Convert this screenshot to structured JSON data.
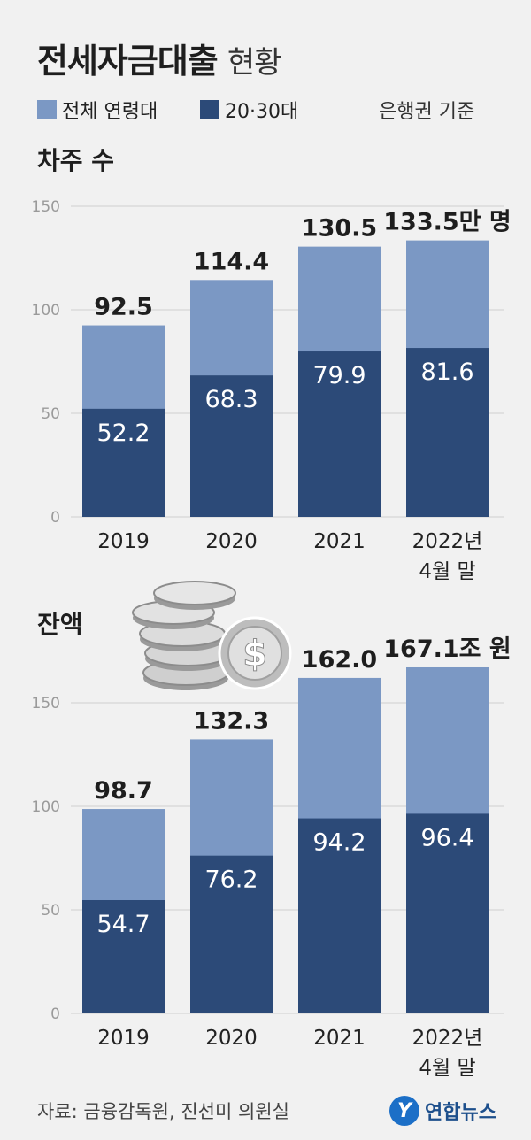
{
  "header": {
    "title_bold": "전세자금대출",
    "title_normal": "현황",
    "legend_all": "전체 연령대",
    "legend_young": "20·30대",
    "basis": "은행권 기준"
  },
  "colors": {
    "all_ages": "#7b98c4",
    "age_20_30": "#2c4a78",
    "grid": "#cfcfcf",
    "axis_text": "#9a9a9a"
  },
  "icons": [
    "coin-stack-icon",
    "dollar-coin-icon"
  ],
  "chart_data": [
    {
      "type": "bar",
      "title": "차주 수",
      "categories": [
        [
          "2019"
        ],
        [
          "2020"
        ],
        [
          "2021"
        ],
        [
          "2022년",
          "4월 말"
        ]
      ],
      "ylim": [
        0,
        150
      ],
      "yticks": [
        0,
        50,
        100,
        150
      ],
      "grid": true,
      "series": [
        {
          "name": "전체 연령대",
          "values": [
            92.5,
            114.4,
            130.5,
            133.5
          ]
        },
        {
          "name": "20·30대",
          "values": [
            52.2,
            68.3,
            79.9,
            81.6
          ]
        }
      ],
      "total_labels": [
        "92.5",
        "114.4",
        "130.5",
        "133.5만 명"
      ],
      "inner_labels": [
        "52.2",
        "68.3",
        "79.9",
        "81.6"
      ]
    },
    {
      "type": "bar",
      "title": "잔액",
      "categories": [
        [
          "2019"
        ],
        [
          "2020"
        ],
        [
          "2021"
        ],
        [
          "2022년",
          "4월 말"
        ]
      ],
      "ylim": [
        0,
        150
      ],
      "yticks": [
        0,
        50,
        100,
        150
      ],
      "grid": true,
      "series": [
        {
          "name": "전체 연령대",
          "values": [
            98.7,
            132.3,
            162.0,
            167.1
          ]
        },
        {
          "name": "20·30대",
          "values": [
            54.7,
            76.2,
            94.2,
            96.4
          ]
        }
      ],
      "total_labels": [
        "98.7",
        "132.3",
        "162.0",
        "167.1조 원"
      ],
      "inner_labels": [
        "54.7",
        "76.2",
        "94.2",
        "96.4"
      ]
    }
  ],
  "footer": {
    "source": "자료: 금융감독원, 진선미 의원실",
    "brand_logo": "Y",
    "brand_name": "연합뉴스"
  }
}
